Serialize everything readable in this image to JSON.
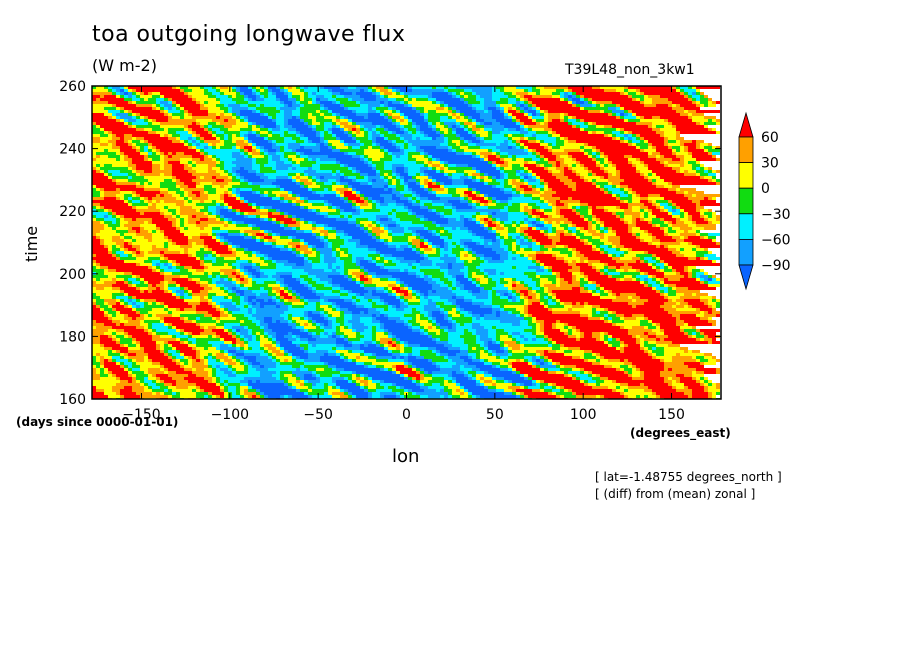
{
  "chart_data": {
    "type": "heatmap",
    "title": "toa outgoing longwave flux",
    "units": "(W m-2)",
    "dataset": "T39L48_non_3kw1",
    "xlabel": "lon",
    "ylabel": "time",
    "x_units": "(degrees_east)",
    "y_units": "(days since 0000-01-01)",
    "xlim": [
      -178,
      178
    ],
    "ylim": [
      160,
      260
    ],
    "x_ticks": [
      -150,
      -100,
      -50,
      0,
      50,
      100,
      150
    ],
    "y_ticks": [
      160,
      180,
      200,
      220,
      240,
      260
    ],
    "notes": [
      "[ lat=-1.48755 degrees_north ]",
      "[ (diff) from (mean) zonal ]"
    ],
    "colorbar": {
      "levels": [
        -90,
        -60,
        -30,
        0,
        30,
        60
      ],
      "level_labels": [
        "-90",
        "-60",
        "-30",
        "0",
        "30",
        "60"
      ],
      "colors": [
        "#0a64ff",
        "#12a0ff",
        "#00f0ff",
        "#11dc11",
        "#ffff00",
        "#ffa000",
        "#ff0000"
      ]
    },
    "regions": [
      {
        "lon_range": [
          -178,
          -120
        ],
        "description_level": 30
      },
      {
        "lon_range": [
          -120,
          60
        ],
        "description_level": -60
      },
      {
        "lon_range": [
          60,
          178
        ],
        "description_level": 60
      }
    ]
  }
}
